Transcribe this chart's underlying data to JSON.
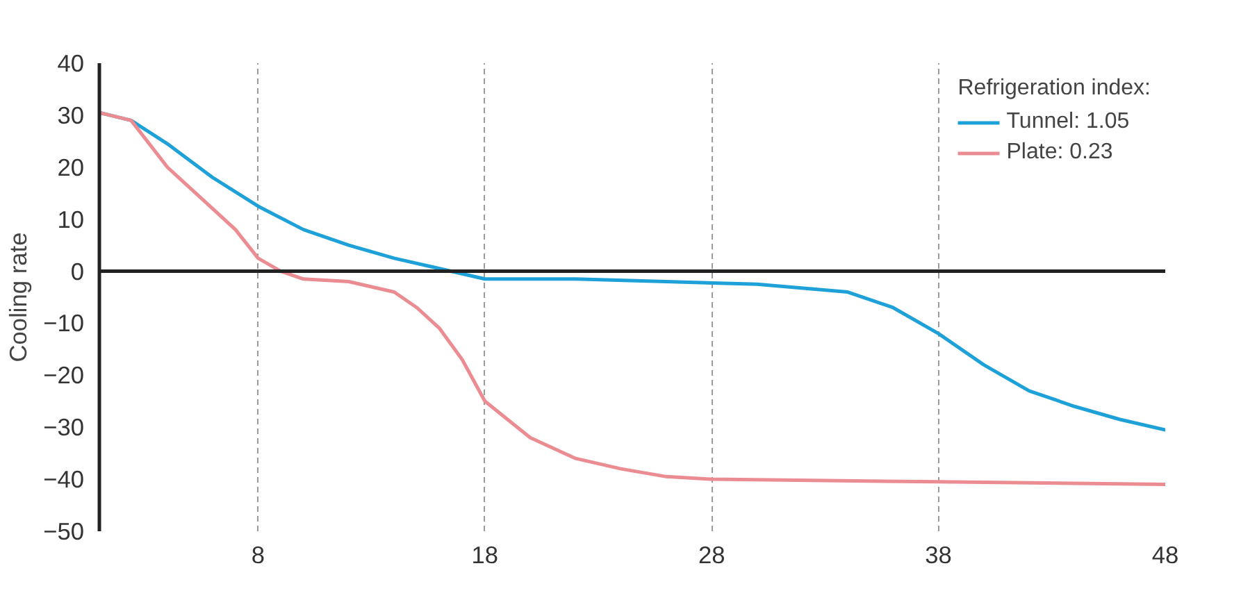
{
  "chart_data": {
    "type": "line",
    "ylabel": "Cooling rate",
    "legend_title": "Refrigeration index:",
    "xlim": [
      1,
      48
    ],
    "ylim": [
      -50,
      40
    ],
    "xticks": [
      8,
      18,
      28,
      38,
      48
    ],
    "yticks": [
      -50,
      -40,
      -30,
      -20,
      -10,
      0,
      10,
      20,
      30,
      40
    ],
    "grid": "x",
    "legend": "top right",
    "line_style": "solid",
    "ref_lines": [
      {
        "axis": "y",
        "value": 0,
        "color": "#222222",
        "line_style": "solid"
      }
    ],
    "series": [
      {
        "name": "Tunnel: 1.05",
        "color": "#1ea1d8",
        "x": [
          1,
          2.4,
          4,
          6,
          8,
          10,
          12,
          14,
          16,
          18,
          22,
          26,
          30,
          34,
          36,
          38,
          40,
          42,
          44,
          46,
          48
        ],
        "values": [
          30.5,
          29,
          24.5,
          18,
          12.5,
          8,
          5,
          2.5,
          0.5,
          -1.5,
          -1.5,
          -2,
          -2.5,
          -4,
          -7,
          -12,
          -18,
          -23,
          -26,
          -28.5,
          -30.5
        ]
      },
      {
        "name": "Plate: 0.23",
        "color": "#ea8c92",
        "x": [
          1,
          2.4,
          4,
          6,
          7,
          8,
          9,
          10,
          12,
          14,
          15,
          16,
          17,
          18,
          20,
          22,
          24,
          26,
          28,
          38,
          48
        ],
        "values": [
          30.5,
          29,
          20,
          12,
          8,
          2.5,
          0,
          -1.5,
          -2,
          -4,
          -7,
          -11,
          -17,
          -25,
          -32,
          -36,
          -38,
          -39.5,
          -40,
          -40.5,
          -41
        ]
      }
    ]
  }
}
